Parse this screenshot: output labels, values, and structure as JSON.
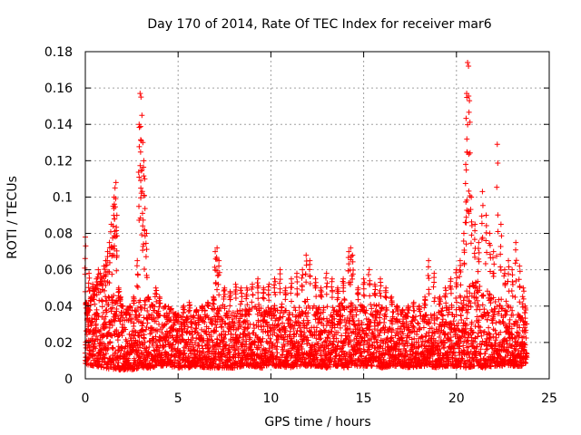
{
  "chart_data": {
    "type": "scatter",
    "title": "Day 170 of 2014, Rate Of TEC Index for receiver mar6",
    "xlabel": "GPS time / hours",
    "ylabel": "ROTI / TECUs",
    "xlim": [
      0,
      25
    ],
    "ylim": [
      0,
      0.18
    ],
    "grid": true,
    "marker": "+",
    "x_ticks": [
      0,
      5,
      10,
      15,
      20,
      25
    ],
    "x_tick_labels": [
      "0",
      "5",
      "10",
      "15",
      "20",
      "25"
    ],
    "y_ticks": [
      0,
      0.02,
      0.04,
      0.06,
      0.08,
      0.1,
      0.12,
      0.14,
      0.16,
      0.18
    ],
    "y_tick_labels": [
      "0",
      "0.02",
      "0.04",
      "0.06",
      "0.08",
      "0.1",
      "0.12",
      "0.14",
      "0.16",
      "0.18"
    ],
    "series": [
      {
        "name": "ROTI",
        "color": "#ff0000",
        "x": [
          0.0,
          0.05,
          0.1,
          0.15,
          0.2,
          0.3,
          0.4,
          0.5,
          0.6,
          0.7,
          0.8,
          0.9,
          1.0,
          1.1,
          1.2,
          1.3,
          1.4,
          1.5,
          1.55,
          1.6,
          1.65,
          1.7,
          1.8,
          1.9,
          2.0,
          2.2,
          2.4,
          2.6,
          2.8,
          2.9,
          2.95,
          3.0,
          3.05,
          3.1,
          3.15,
          3.2,
          3.3,
          3.4,
          3.6,
          3.8,
          4.0,
          4.3,
          4.6,
          5.0,
          5.3,
          5.6,
          6.0,
          6.3,
          6.6,
          6.9,
          7.0,
          7.1,
          7.2,
          7.5,
          7.8,
          8.1,
          8.4,
          8.7,
          9.0,
          9.3,
          9.6,
          9.9,
          10.2,
          10.5,
          10.8,
          11.1,
          11.4,
          11.7,
          11.9,
          12.1,
          12.4,
          12.7,
          13.0,
          13.3,
          13.6,
          13.9,
          14.2,
          14.3,
          14.4,
          14.7,
          15.0,
          15.3,
          15.6,
          15.9,
          16.2,
          16.5,
          16.8,
          17.1,
          17.4,
          17.7,
          18.0,
          18.3,
          18.5,
          18.8,
          19.1,
          19.4,
          19.7,
          20.0,
          20.2,
          20.4,
          20.5,
          20.55,
          20.6,
          20.65,
          20.7,
          20.8,
          21.0,
          21.2,
          21.4,
          21.6,
          21.8,
          22.0,
          22.2,
          22.4,
          22.6,
          22.8,
          23.0,
          23.2,
          23.4,
          23.6,
          23.7
        ],
        "y": [
          0.078,
          0.042,
          0.035,
          0.03,
          0.058,
          0.045,
          0.052,
          0.05,
          0.055,
          0.06,
          0.058,
          0.055,
          0.062,
          0.065,
          0.07,
          0.075,
          0.085,
          0.095,
          0.1,
          0.105,
          0.108,
          0.09,
          0.05,
          0.045,
          0.04,
          0.035,
          0.04,
          0.045,
          0.065,
          0.14,
          0.157,
          0.155,
          0.145,
          0.13,
          0.12,
          0.11,
          0.08,
          0.045,
          0.04,
          0.05,
          0.045,
          0.04,
          0.038,
          0.035,
          0.04,
          0.042,
          0.038,
          0.04,
          0.042,
          0.045,
          0.07,
          0.072,
          0.065,
          0.05,
          0.048,
          0.052,
          0.05,
          0.05,
          0.052,
          0.055,
          0.05,
          0.052,
          0.055,
          0.06,
          0.05,
          0.055,
          0.058,
          0.06,
          0.068,
          0.065,
          0.055,
          0.05,
          0.058,
          0.055,
          0.05,
          0.055,
          0.07,
          0.072,
          0.068,
          0.05,
          0.055,
          0.06,
          0.052,
          0.055,
          0.05,
          0.045,
          0.04,
          0.038,
          0.04,
          0.042,
          0.04,
          0.045,
          0.065,
          0.058,
          0.045,
          0.05,
          0.055,
          0.06,
          0.065,
          0.08,
          0.118,
          0.157,
          0.174,
          0.172,
          0.153,
          0.1,
          0.085,
          0.075,
          0.103,
          0.09,
          0.08,
          0.07,
          0.129,
          0.085,
          0.06,
          0.065,
          0.06,
          0.075,
          0.062,
          0.05,
          0.04
        ],
        "band_x": [
          0.0,
          0.5,
          1.0,
          1.5,
          2.0,
          2.5,
          3.0,
          3.5,
          4.0,
          4.5,
          5.0,
          5.5,
          6.0,
          6.5,
          7.0,
          7.5,
          8.0,
          8.5,
          9.0,
          9.5,
          10.0,
          10.5,
          11.0,
          11.5,
          12.0,
          12.5,
          13.0,
          13.5,
          14.0,
          14.5,
          15.0,
          15.5,
          16.0,
          16.5,
          17.0,
          17.5,
          18.0,
          18.5,
          19.0,
          19.5,
          20.0,
          20.5,
          21.0,
          21.5,
          22.0,
          22.5,
          23.0,
          23.5,
          23.8
        ],
        "band_low": [
          0.008,
          0.007,
          0.006,
          0.005,
          0.005,
          0.005,
          0.006,
          0.006,
          0.007,
          0.007,
          0.006,
          0.006,
          0.007,
          0.006,
          0.006,
          0.006,
          0.006,
          0.007,
          0.007,
          0.006,
          0.007,
          0.007,
          0.006,
          0.007,
          0.007,
          0.007,
          0.006,
          0.007,
          0.006,
          0.007,
          0.007,
          0.007,
          0.006,
          0.007,
          0.007,
          0.006,
          0.007,
          0.007,
          0.006,
          0.007,
          0.007,
          0.006,
          0.007,
          0.006,
          0.007,
          0.007,
          0.007,
          0.007,
          0.009
        ],
        "band_high": [
          0.04,
          0.042,
          0.045,
          0.048,
          0.04,
          0.038,
          0.045,
          0.042,
          0.038,
          0.04,
          0.035,
          0.034,
          0.036,
          0.038,
          0.04,
          0.042,
          0.04,
          0.038,
          0.04,
          0.042,
          0.04,
          0.042,
          0.04,
          0.04,
          0.045,
          0.042,
          0.04,
          0.04,
          0.045,
          0.042,
          0.04,
          0.042,
          0.04,
          0.038,
          0.036,
          0.035,
          0.035,
          0.036,
          0.038,
          0.04,
          0.045,
          0.05,
          0.055,
          0.05,
          0.045,
          0.045,
          0.04,
          0.035,
          0.03
        ]
      }
    ]
  }
}
